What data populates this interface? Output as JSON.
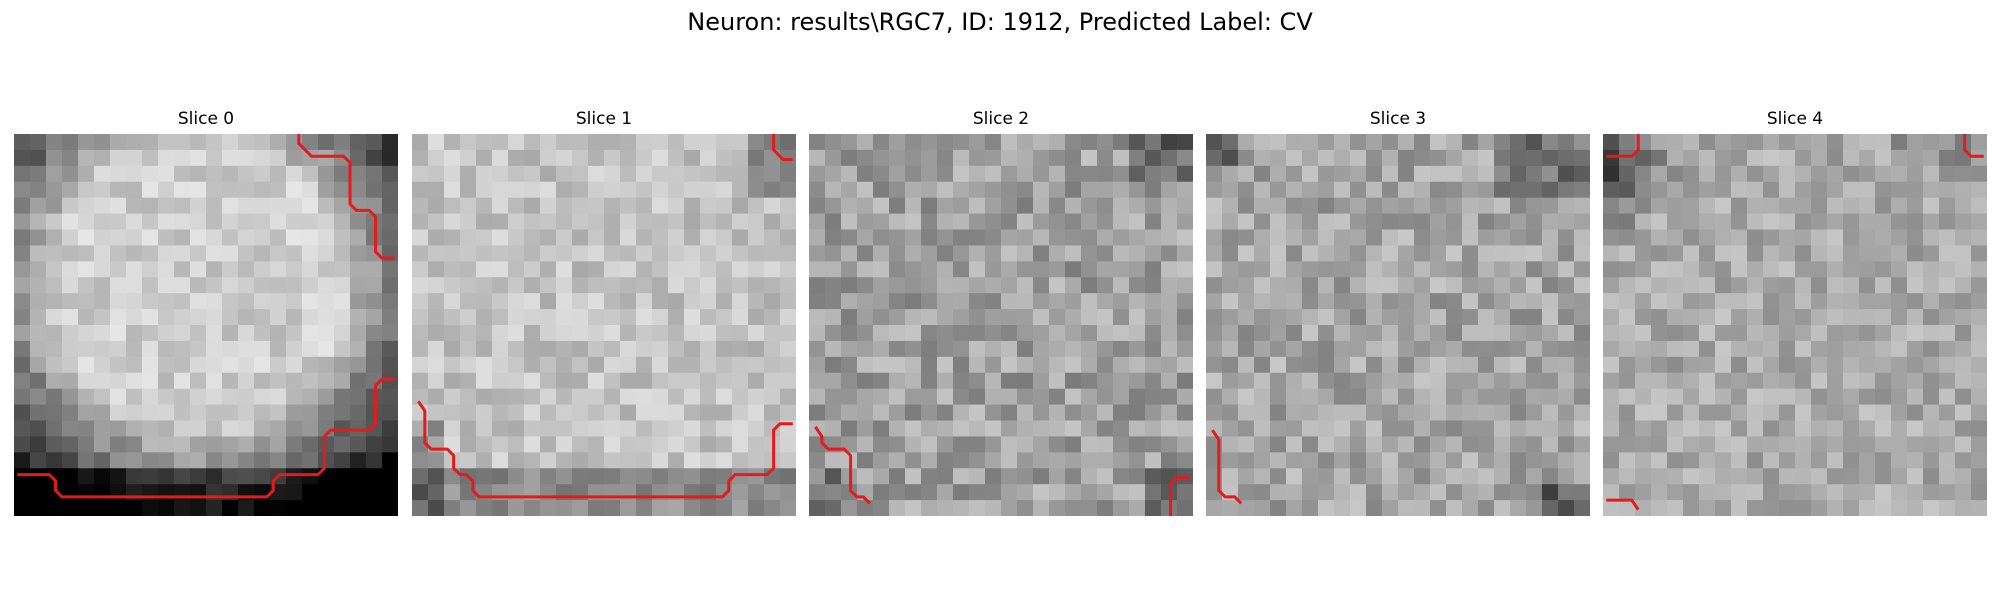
{
  "figure": {
    "title": "Neuron: results\\RGC7, ID: 1912, Predicted Label: CV"
  },
  "slices": [
    {
      "label": "Slice 0"
    },
    {
      "label": "Slice 1"
    },
    {
      "label": "Slice 2"
    },
    {
      "label": "Slice 3"
    },
    {
      "label": "Slice 4"
    }
  ],
  "colors": {
    "contour": "#e41a1c",
    "background": "#ffffff"
  }
}
